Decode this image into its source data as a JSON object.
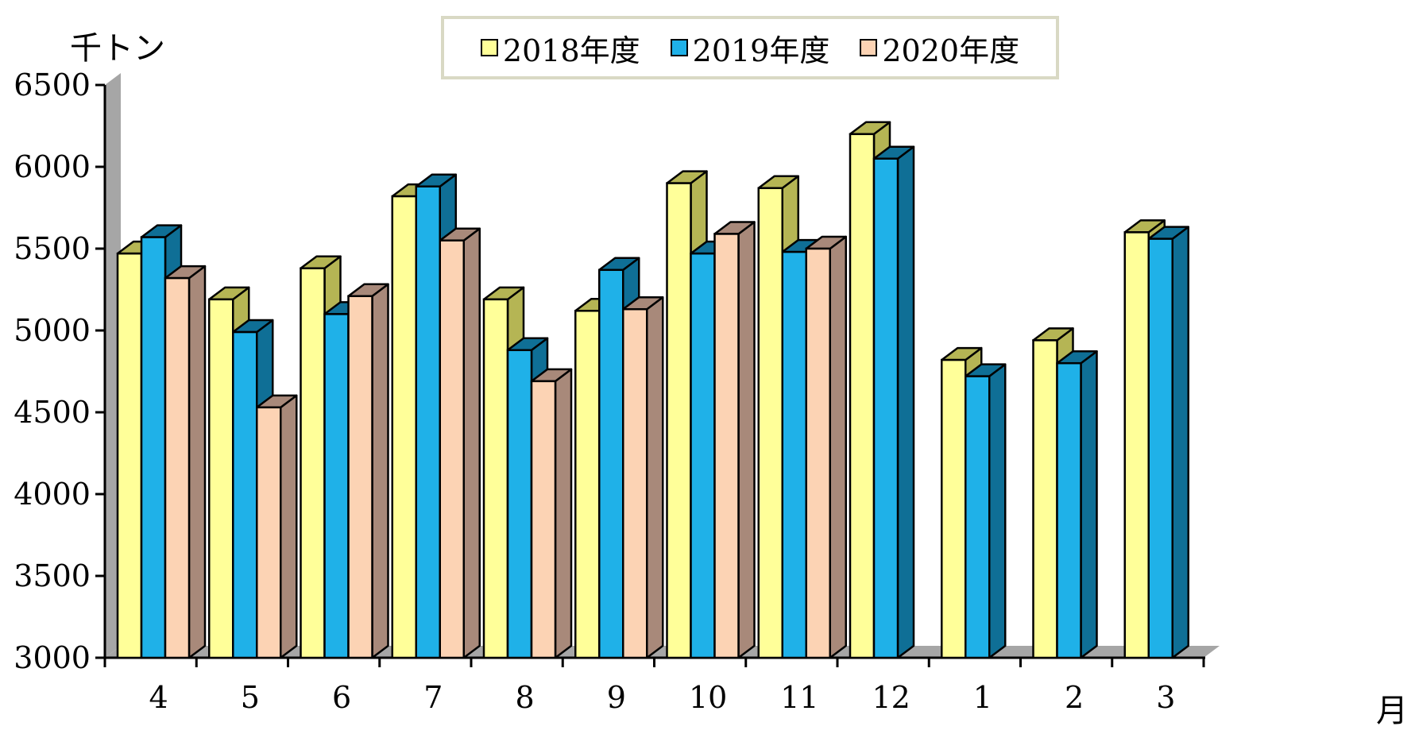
{
  "chart_data": {
    "type": "bar",
    "ylabel": "千トン",
    "xunit": "月",
    "ylim": [
      3000,
      6500
    ],
    "yticks": [
      3000,
      3500,
      4000,
      4500,
      5000,
      5500,
      6000,
      6500
    ],
    "categories": [
      "4",
      "5",
      "6",
      "7",
      "8",
      "9",
      "10",
      "11",
      "12",
      "1",
      "2",
      "3"
    ],
    "series": [
      {
        "name": "2018年度",
        "color": "#ffff99",
        "side": "#b5b554",
        "values": [
          5470,
          5190,
          5380,
          5820,
          5190,
          5120,
          5900,
          5870,
          6200,
          4820,
          4940,
          5600
        ]
      },
      {
        "name": "2019年度",
        "color": "#1fb1e8",
        "side": "#0f6f96",
        "values": [
          5570,
          4990,
          5100,
          5880,
          4880,
          5370,
          5470,
          5480,
          6050,
          4720,
          4800,
          5560
        ]
      },
      {
        "name": "2020年度",
        "color": "#fcd3b4",
        "side": "#a8897a",
        "values": [
          5320,
          4530,
          5210,
          5550,
          4690,
          5130,
          5590,
          5500,
          null,
          null,
          null,
          null
        ]
      }
    ],
    "legend_position": "top"
  }
}
